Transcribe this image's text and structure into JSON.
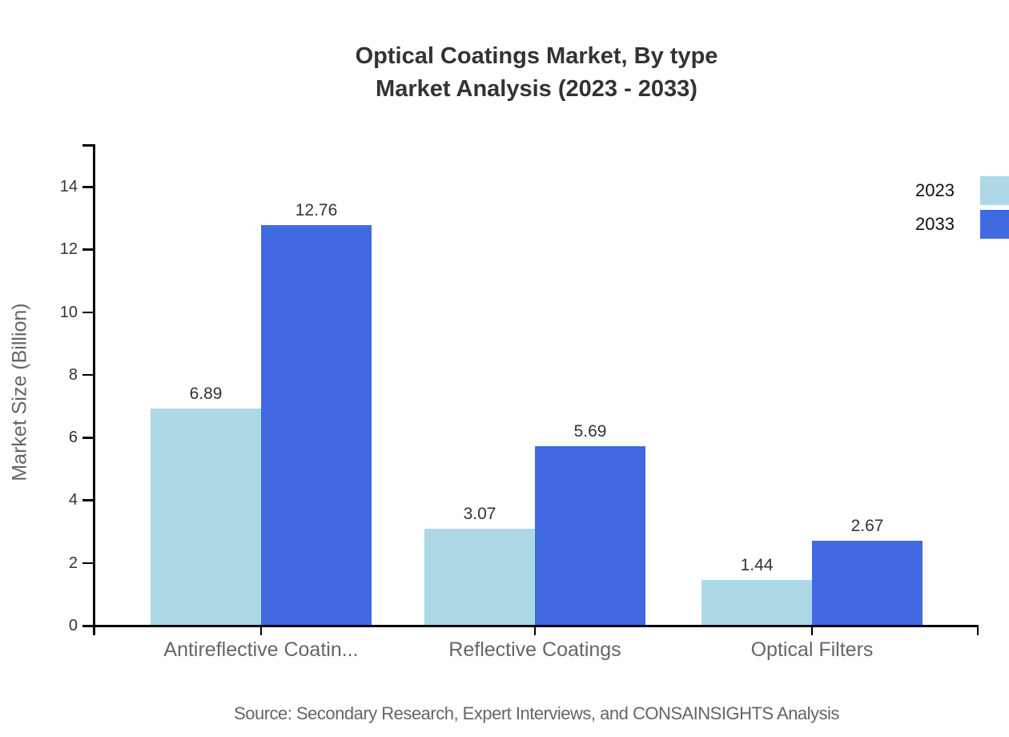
{
  "title": {
    "line1": "Optical Coatings Market, By type",
    "line2": "Market Analysis (2023 - 2033)"
  },
  "source": {
    "text": "Source: Secondary Research, Expert Interviews, and CONSAINSIGHTS Analysis"
  },
  "legend": {
    "position": "top-right",
    "items": [
      {
        "label": "2023",
        "color": "#ADD8E6"
      },
      {
        "label": "2033",
        "color": "#4169E1"
      }
    ]
  },
  "colors": {
    "series_2023": "#ADD8E6",
    "series_2033": "#4169E1",
    "axis": "#000000",
    "title_text": "#333333",
    "tick_text": "#333333",
    "category_text": "#666666",
    "background": "#ffffff"
  },
  "chart_data": {
    "type": "bar",
    "title": "Optical Coatings Market, By type — Market Analysis (2023 - 2033)",
    "categories": [
      "Antireflective Coatin...",
      "Reflective Coatings",
      "Optical Filters"
    ],
    "series": [
      {
        "name": "2023",
        "color": "#ADD8E6",
        "values": [
          6.89,
          3.07,
          1.44
        ]
      },
      {
        "name": "2033",
        "color": "#4169E1",
        "values": [
          12.76,
          5.69,
          2.67
        ]
      }
    ],
    "xlabel": "",
    "ylabel": "Market Size (Billion)",
    "ylim": [
      0,
      15.33
    ],
    "yticks": [
      0,
      2,
      4,
      6,
      8,
      10,
      12,
      14
    ],
    "grid": false,
    "legend_position": "top-right",
    "value_labels": true
  }
}
